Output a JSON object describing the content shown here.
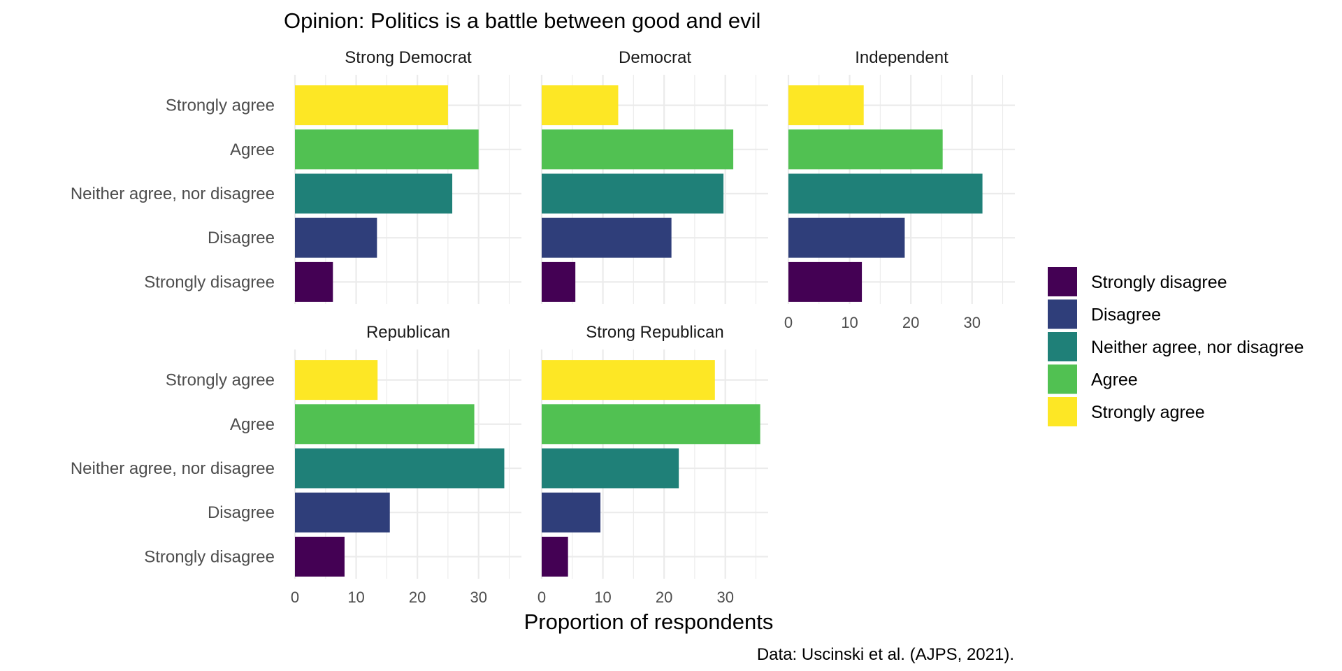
{
  "chart_data": {
    "type": "bar",
    "orientation": "horizontal",
    "title": "Opinion: Politics is a battle between good and evil",
    "xlabel": "Proportion of respondents",
    "ylabel": "",
    "caption": "Data: Uscinski et al. (AJPS, 2021).",
    "xlim": [
      0,
      37
    ],
    "x_ticks": [
      "0",
      "10",
      "20",
      "30"
    ],
    "x_tick_values": [
      0,
      10,
      20,
      30
    ],
    "grid": true,
    "legend_position": "right",
    "categories": [
      "Strongly disagree",
      "Disagree",
      "Neither agree, nor disagree",
      "Agree",
      "Strongly agree"
    ],
    "colors": [
      "#440154",
      "#2f3e7a",
      "#1f8078",
      "#51c152",
      "#fde725"
    ],
    "panels": [
      {
        "name": "Strong Democrat",
        "values": [
          6.2,
          13.4,
          25.7,
          30.0,
          25.0
        ]
      },
      {
        "name": "Democrat",
        "values": [
          5.5,
          21.2,
          29.7,
          31.3,
          12.5
        ]
      },
      {
        "name": "Independent",
        "values": [
          12.0,
          19.0,
          31.7,
          25.2,
          12.3
        ]
      },
      {
        "name": "Republican",
        "values": [
          8.1,
          15.5,
          34.2,
          29.3,
          13.5
        ]
      },
      {
        "name": "Strong Republican",
        "values": [
          4.3,
          9.6,
          22.4,
          35.7,
          28.3
        ]
      }
    ]
  }
}
